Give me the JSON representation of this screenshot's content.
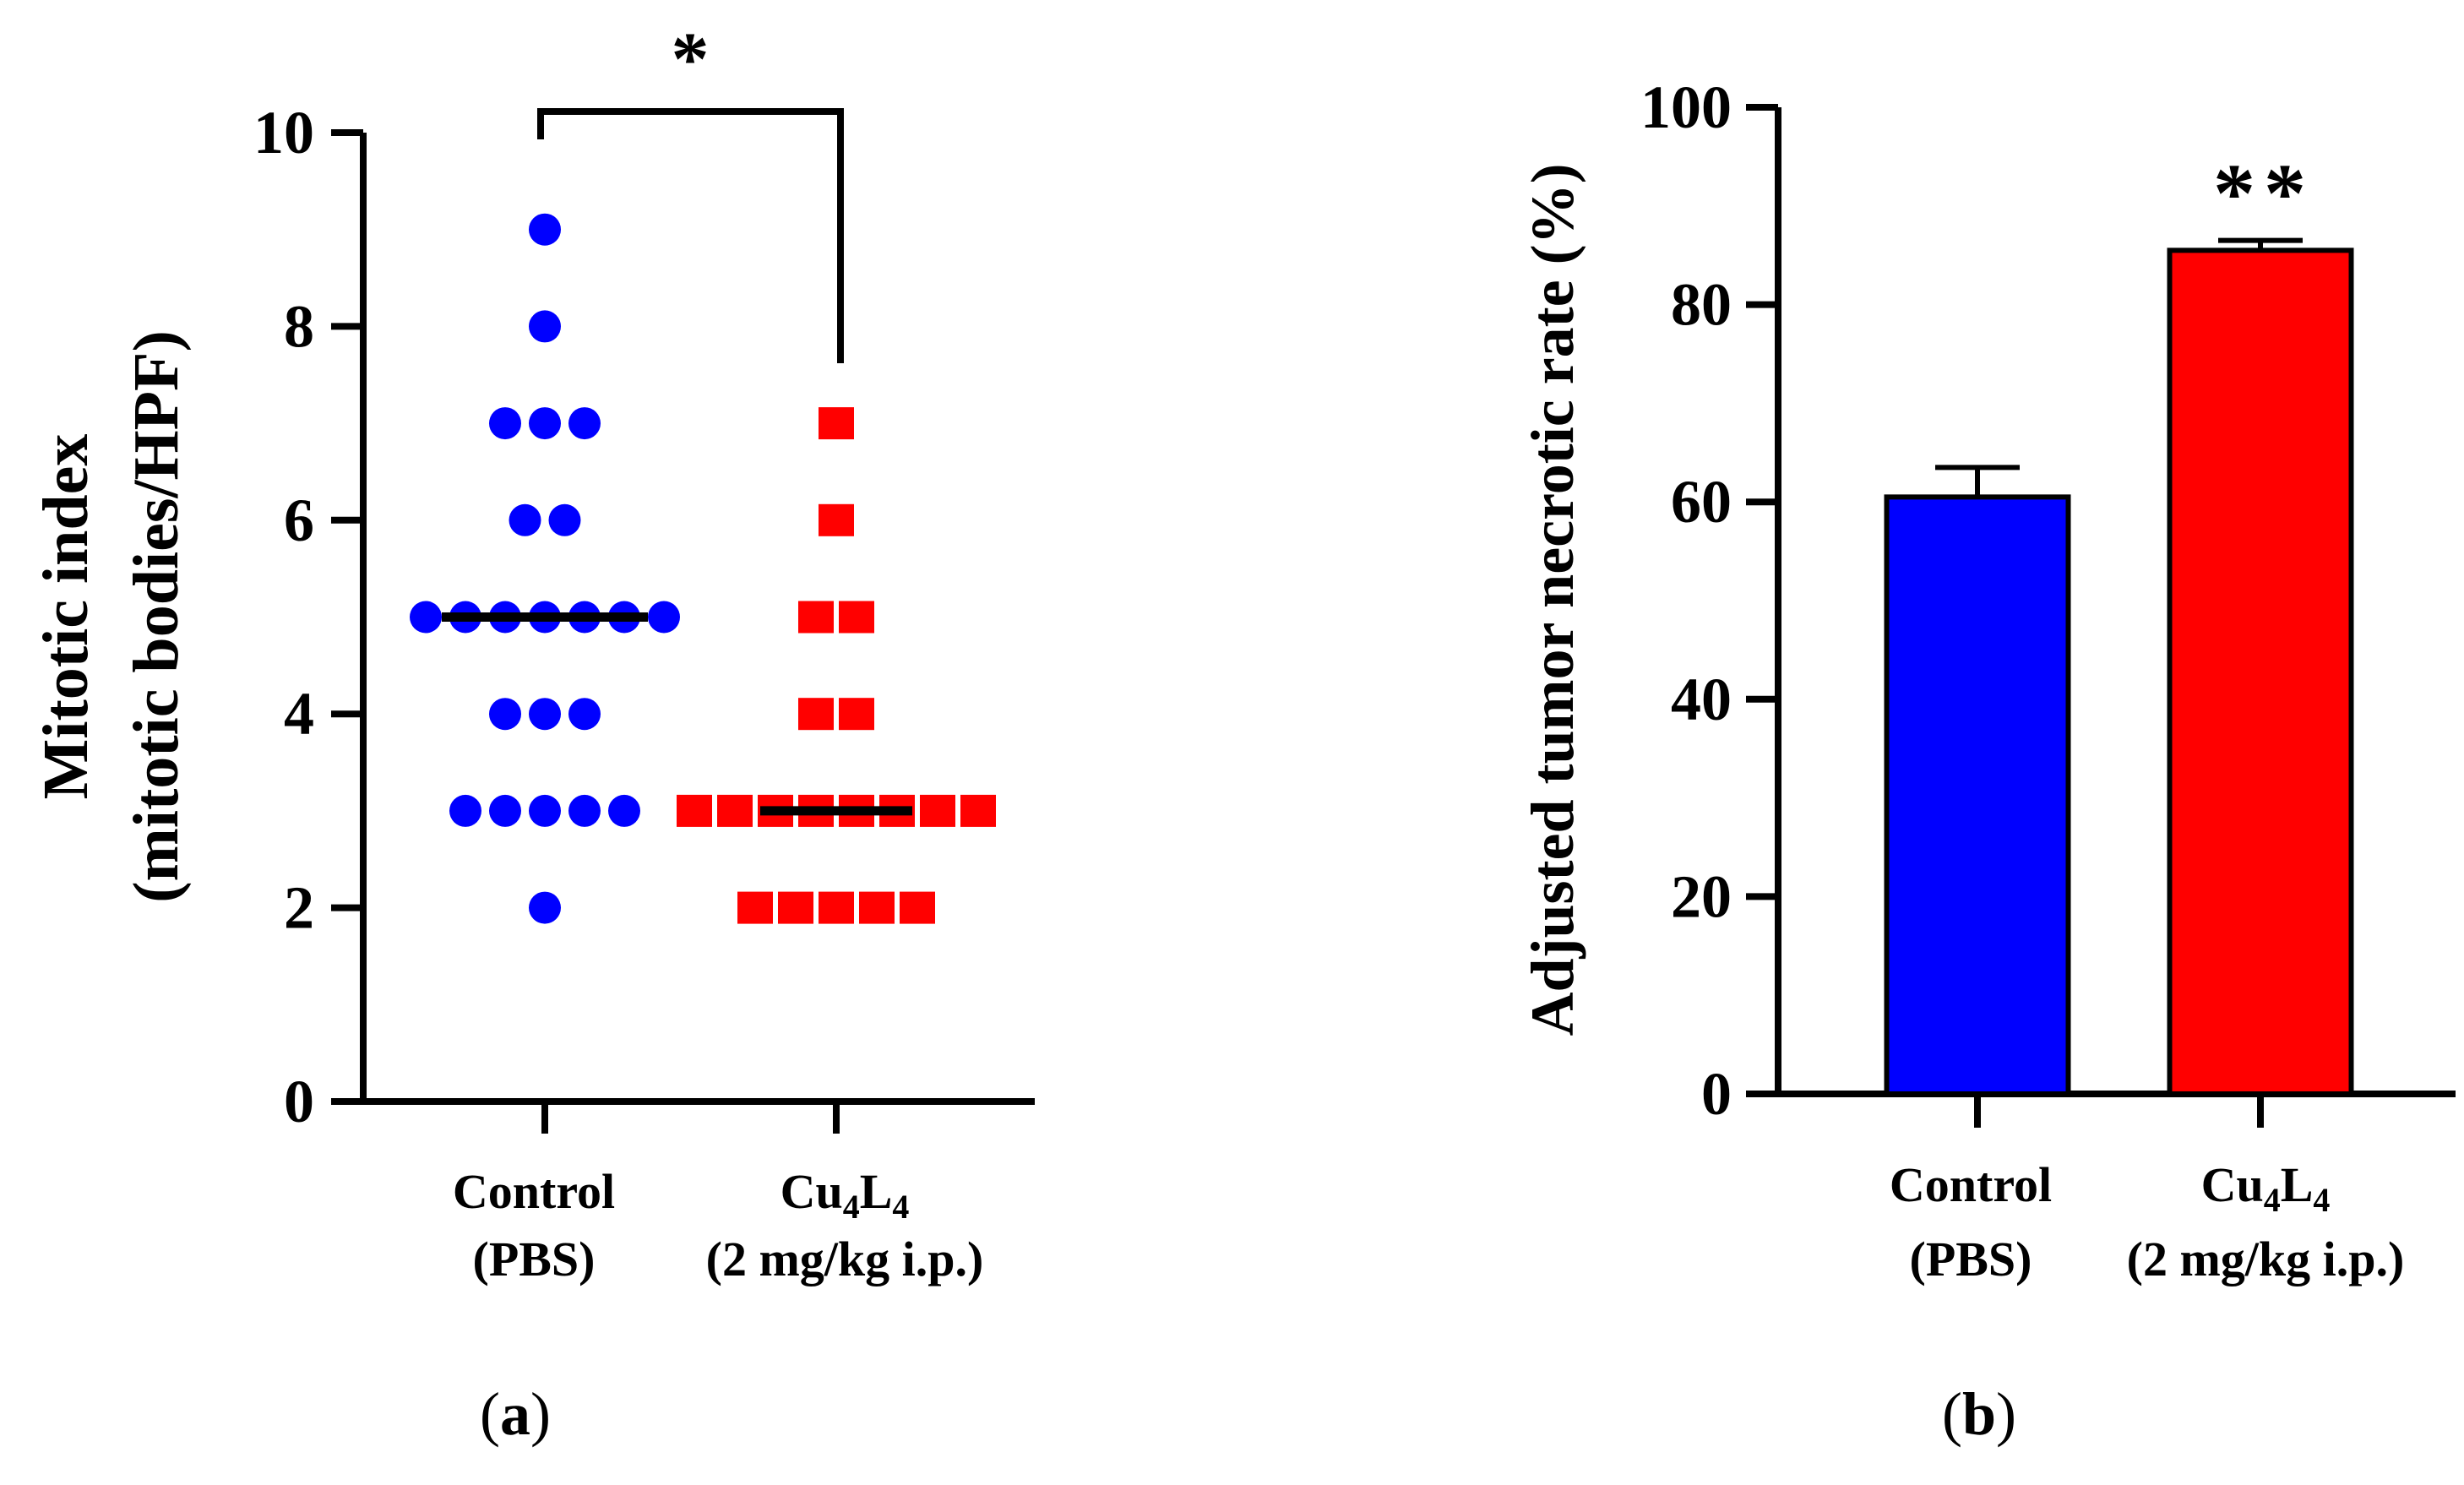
{
  "chart_data": [
    {
      "type": "scatter",
      "panel_label": "(a)",
      "panel_letter": "a",
      "significance": "*",
      "ylabel_line1": "Mitotic index",
      "ylabel_line2": "(mitotic bodies/HPF)",
      "ylim": [
        0,
        10
      ],
      "yticks": [
        "0",
        "2",
        "4",
        "6",
        "8",
        "10"
      ],
      "categories": [
        {
          "line1": "Control",
          "line2": "(PBS)"
        },
        {
          "line1_main": "Cu",
          "sub1": "4",
          "mid": "L",
          "sub2": "4",
          "line2": "(2 mg/kg i.p.)"
        }
      ],
      "series": [
        {
          "name": "Control (PBS)",
          "color": "#0000ff",
          "marker": "circle",
          "values": [
            9,
            8,
            7,
            7,
            7,
            6,
            6,
            5,
            5,
            5,
            5,
            5,
            5,
            5,
            4,
            4,
            4,
            3,
            3,
            3,
            3,
            3,
            2
          ],
          "median": 5
        },
        {
          "name": "Cu4L4 (2 mg/kg i.p.)",
          "color": "#ff0000",
          "marker": "square",
          "values": [
            7,
            6,
            5,
            5,
            4,
            4,
            3,
            3,
            3,
            3,
            3,
            3,
            3,
            3,
            2,
            2,
            2,
            2,
            2
          ],
          "median": 3
        }
      ]
    },
    {
      "type": "bar",
      "panel_label": "(b)",
      "panel_letter": "b",
      "significance": "**",
      "ylabel": "Adjusted tumor necrotic rate (%)",
      "ylim": [
        0,
        100
      ],
      "yticks": [
        "0",
        "20",
        "40",
        "60",
        "80",
        "100"
      ],
      "categories": [
        {
          "line1": "Control",
          "line2": "(PBS)"
        },
        {
          "line1_main": "Cu",
          "sub1": "4",
          "mid": "L",
          "sub2": "4",
          "line2": "(2 mg/kg i.p.)"
        }
      ],
      "values": [
        60.5,
        85.5
      ],
      "errors": [
        3.0,
        1.0
      ],
      "colors": [
        "#0000ff",
        "#ff0000"
      ]
    }
  ]
}
